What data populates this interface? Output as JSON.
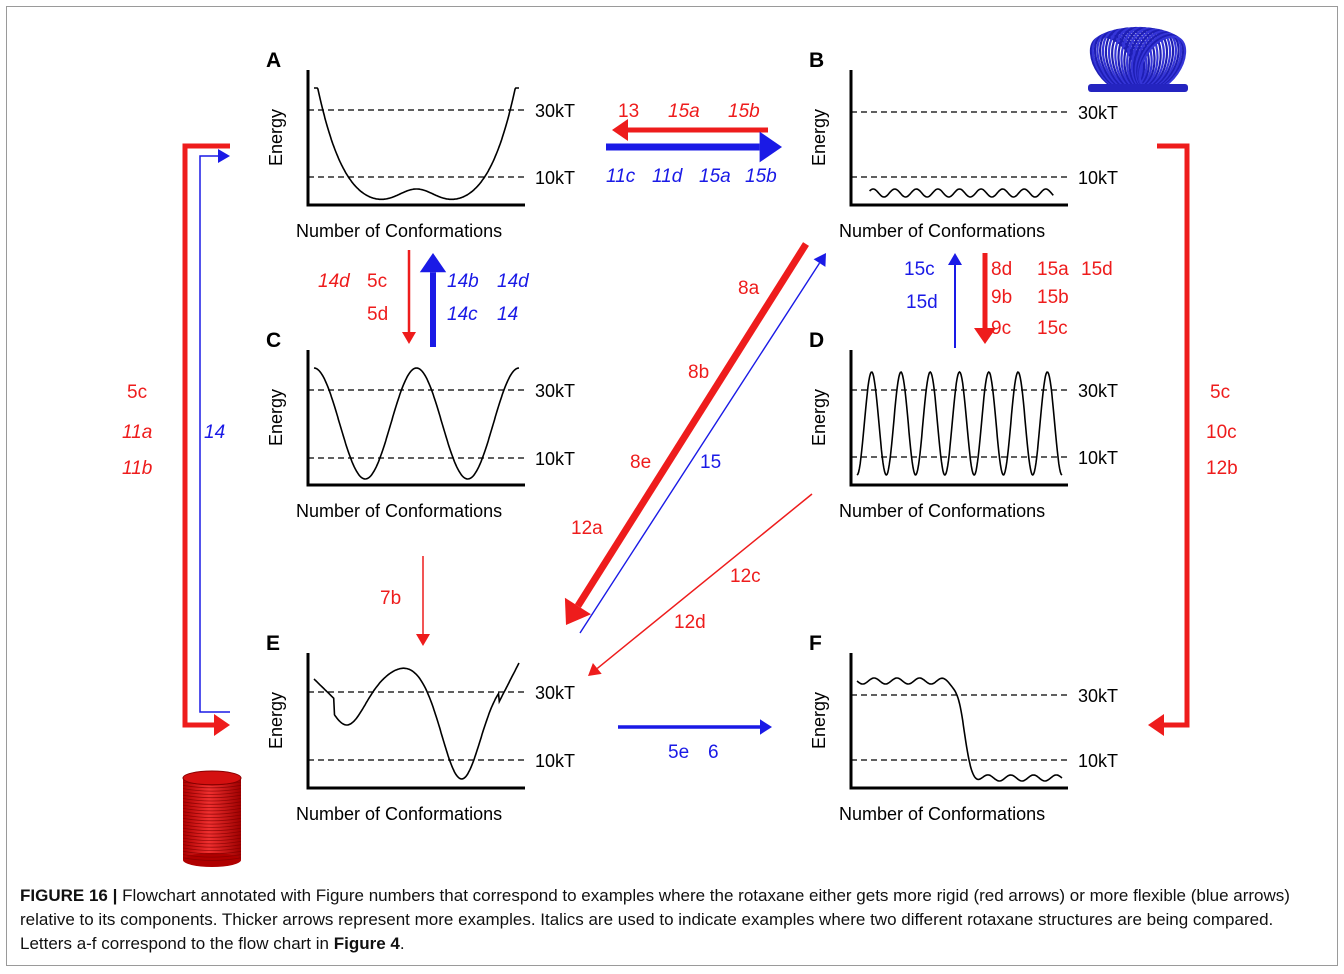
{
  "panels": [
    {
      "id": "A",
      "letter": "A",
      "ylabel": "Energy",
      "xlabel": "Number of Conformations",
      "upper_level": "30kT",
      "lower_level": "10kT",
      "profile": "broad-double-well"
    },
    {
      "id": "B",
      "letter": "B",
      "ylabel": "Energy",
      "xlabel": "Number of Conformations",
      "upper_level": "30kT",
      "lower_level": "10kT",
      "profile": "flat-low"
    },
    {
      "id": "C",
      "letter": "C",
      "ylabel": "Energy",
      "xlabel": "Number of Conformations",
      "upper_level": "30kT",
      "lower_level": "10kT",
      "profile": "high-barrier-double-well"
    },
    {
      "id": "D",
      "letter": "D",
      "ylabel": "Energy",
      "xlabel": "Number of Conformations",
      "upper_level": "30kT",
      "lower_level": "10kT",
      "profile": "many-high-barriers"
    },
    {
      "id": "E",
      "letter": "E",
      "ylabel": "Energy",
      "xlabel": "Number of Conformations",
      "upper_level": "30kT",
      "lower_level": "10kT",
      "profile": "asymmetric-double-well"
    },
    {
      "id": "F",
      "letter": "F",
      "ylabel": "Energy",
      "xlabel": "Number of Conformations",
      "upper_level": "30kT",
      "lower_level": "10kT",
      "profile": "step-down"
    }
  ],
  "arrows": [
    {
      "id": "b-to-a",
      "color": "red",
      "thickness": "thick",
      "labels": [
        {
          "text": "13",
          "italic": false
        },
        {
          "text": "15a",
          "italic": true
        },
        {
          "text": "15b",
          "italic": true
        }
      ]
    },
    {
      "id": "a-to-b",
      "color": "blue",
      "thickness": "thick",
      "labels": [
        {
          "text": "11c",
          "italic": true
        },
        {
          "text": "11d",
          "italic": true
        },
        {
          "text": "15a",
          "italic": true
        },
        {
          "text": "15b",
          "italic": true
        }
      ]
    },
    {
      "id": "a-to-c",
      "color": "red",
      "thickness": "thin",
      "labels": [
        {
          "text": "14d",
          "italic": true
        },
        {
          "text": "5c",
          "italic": false
        },
        {
          "text": "5d",
          "italic": false
        }
      ]
    },
    {
      "id": "c-to-a",
      "color": "blue",
      "thickness": "thick",
      "labels": [
        {
          "text": "14b",
          "italic": true
        },
        {
          "text": "14d",
          "italic": true
        },
        {
          "text": "14c",
          "italic": true
        },
        {
          "text": "14",
          "italic": true
        }
      ]
    },
    {
      "id": "d-to-b",
      "color": "blue",
      "thickness": "thin",
      "labels": [
        {
          "text": "15c",
          "italic": false
        },
        {
          "text": "15d",
          "italic": false
        }
      ]
    },
    {
      "id": "b-to-d",
      "color": "red",
      "thickness": "thick",
      "labels": [
        {
          "text": "8d",
          "italic": false
        },
        {
          "text": "15a",
          "italic": false
        },
        {
          "text": "15d",
          "italic": false
        },
        {
          "text": "9b",
          "italic": false
        },
        {
          "text": "15b",
          "italic": false
        },
        {
          "text": "9c",
          "italic": false
        },
        {
          "text": "15c",
          "italic": false
        }
      ]
    },
    {
      "id": "b-to-e",
      "color": "red",
      "thickness": "thick",
      "labels": [
        {
          "text": "8a",
          "italic": false
        },
        {
          "text": "8b",
          "italic": false
        },
        {
          "text": "8e",
          "italic": false
        },
        {
          "text": "12a",
          "italic": false
        }
      ]
    },
    {
      "id": "e-to-b",
      "color": "blue",
      "thickness": "thin",
      "labels": [
        {
          "text": "15",
          "italic": false
        }
      ]
    },
    {
      "id": "d-to-e",
      "color": "red",
      "thickness": "thin",
      "labels": [
        {
          "text": "12c",
          "italic": false
        },
        {
          "text": "12d",
          "italic": false
        }
      ]
    },
    {
      "id": "c-to-e",
      "color": "red",
      "thickness": "thin",
      "labels": [
        {
          "text": "7b",
          "italic": false
        }
      ]
    },
    {
      "id": "e-to-f",
      "color": "blue",
      "thickness": "thick",
      "labels": [
        {
          "text": "5e",
          "italic": false
        },
        {
          "text": "6",
          "italic": false
        }
      ]
    },
    {
      "id": "a-to-e",
      "color": "red",
      "thickness": "thick",
      "labels": [
        {
          "text": "5c",
          "italic": false
        },
        {
          "text": "11a",
          "italic": true
        },
        {
          "text": "11b",
          "italic": true
        }
      ]
    },
    {
      "id": "e-to-a",
      "color": "blue",
      "thickness": "thin",
      "labels": [
        {
          "text": "14",
          "italic": true
        }
      ]
    },
    {
      "id": "b-to-f",
      "color": "red",
      "thickness": "thick",
      "labels": [
        {
          "text": "5c",
          "italic": false
        },
        {
          "text": "10c",
          "italic": false
        },
        {
          "text": "12b",
          "italic": false
        }
      ]
    }
  ],
  "colors": {
    "red": "#ee1c1c",
    "blue": "#1a1ae6",
    "axis": "#000000",
    "text": "#111111"
  },
  "icons": {
    "flexible": "blue-slinky-icon",
    "rigid": "red-coil-spring-icon"
  },
  "caption": {
    "label": "FIGURE 16 |",
    "text": " Flowchart annotated with Figure numbers that correspond to examples where the rotaxane either gets more rigid (red arrows) or more flexible (blue arrows) relative to its components. Thicker arrows represent more examples. Italics are used to indicate examples where two different rotaxane structures are being compared. Letters a-f correspond to the flow chart in ",
    "ref": "Figure 4",
    "end": "."
  }
}
